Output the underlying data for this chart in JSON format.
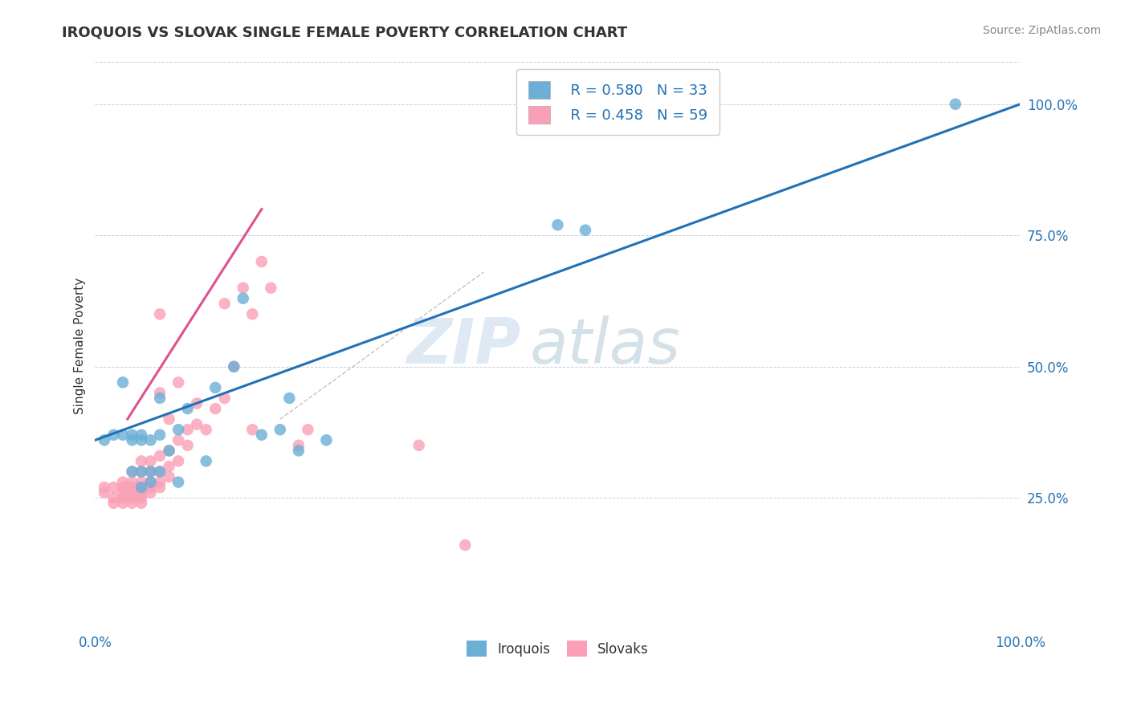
{
  "title": "IROQUOIS VS SLOVAK SINGLE FEMALE POVERTY CORRELATION CHART",
  "source": "Source: ZipAtlas.com",
  "ylabel": "Single Female Poverty",
  "legend_r": [
    0.58,
    0.458
  ],
  "legend_n": [
    33,
    59
  ],
  "blue_color": "#6BAED6",
  "pink_color": "#FA9FB5",
  "blue_line_color": "#2171B5",
  "pink_line_color": "#E05090",
  "text_color": "#2171B5",
  "watermark_zip": "ZIP",
  "watermark_atlas": "atlas",
  "grid_color": "#C8D0DC",
  "iroquois_x": [
    0.01,
    0.02,
    0.03,
    0.03,
    0.04,
    0.04,
    0.04,
    0.05,
    0.05,
    0.05,
    0.05,
    0.06,
    0.06,
    0.06,
    0.07,
    0.07,
    0.07,
    0.08,
    0.09,
    0.09,
    0.1,
    0.12,
    0.13,
    0.15,
    0.16,
    0.18,
    0.2,
    0.21,
    0.22,
    0.25,
    0.5,
    0.53,
    0.93
  ],
  "iroquois_y": [
    0.36,
    0.37,
    0.37,
    0.47,
    0.36,
    0.37,
    0.3,
    0.36,
    0.37,
    0.3,
    0.27,
    0.36,
    0.3,
    0.28,
    0.37,
    0.44,
    0.3,
    0.34,
    0.38,
    0.28,
    0.42,
    0.32,
    0.46,
    0.5,
    0.63,
    0.37,
    0.38,
    0.44,
    0.34,
    0.36,
    0.77,
    0.76,
    1.0
  ],
  "slovak_x": [
    0.01,
    0.01,
    0.02,
    0.02,
    0.02,
    0.03,
    0.03,
    0.03,
    0.03,
    0.03,
    0.04,
    0.04,
    0.04,
    0.04,
    0.04,
    0.04,
    0.05,
    0.05,
    0.05,
    0.05,
    0.05,
    0.05,
    0.05,
    0.06,
    0.06,
    0.06,
    0.06,
    0.06,
    0.07,
    0.07,
    0.07,
    0.07,
    0.07,
    0.07,
    0.08,
    0.08,
    0.08,
    0.08,
    0.09,
    0.09,
    0.09,
    0.1,
    0.1,
    0.11,
    0.11,
    0.12,
    0.13,
    0.14,
    0.14,
    0.15,
    0.16,
    0.17,
    0.17,
    0.18,
    0.19,
    0.22,
    0.23,
    0.35,
    0.4
  ],
  "slovak_y": [
    0.26,
    0.27,
    0.24,
    0.25,
    0.27,
    0.24,
    0.25,
    0.26,
    0.27,
    0.28,
    0.24,
    0.25,
    0.26,
    0.27,
    0.28,
    0.3,
    0.24,
    0.25,
    0.26,
    0.27,
    0.28,
    0.3,
    0.32,
    0.26,
    0.27,
    0.28,
    0.3,
    0.32,
    0.27,
    0.28,
    0.3,
    0.33,
    0.45,
    0.6,
    0.29,
    0.31,
    0.34,
    0.4,
    0.32,
    0.36,
    0.47,
    0.35,
    0.38,
    0.39,
    0.43,
    0.38,
    0.42,
    0.44,
    0.62,
    0.5,
    0.65,
    0.38,
    0.6,
    0.7,
    0.65,
    0.35,
    0.38,
    0.35,
    0.16
  ],
  "blue_line_x": [
    0.0,
    1.0
  ],
  "blue_line_y": [
    0.36,
    1.0
  ],
  "pink_line_x": [
    0.035,
    0.18
  ],
  "pink_line_y": [
    0.4,
    0.8
  ],
  "ref_line_x": [
    0.2,
    0.42
  ],
  "ref_line_y": [
    0.4,
    0.68
  ],
  "xlim": [
    0.0,
    1.0
  ],
  "ylim": [
    0.0,
    1.08
  ],
  "yticks": [
    0.25,
    0.5,
    0.75,
    1.0
  ],
  "ytick_labels": [
    "25.0%",
    "50.0%",
    "75.0%",
    "100.0%"
  ]
}
